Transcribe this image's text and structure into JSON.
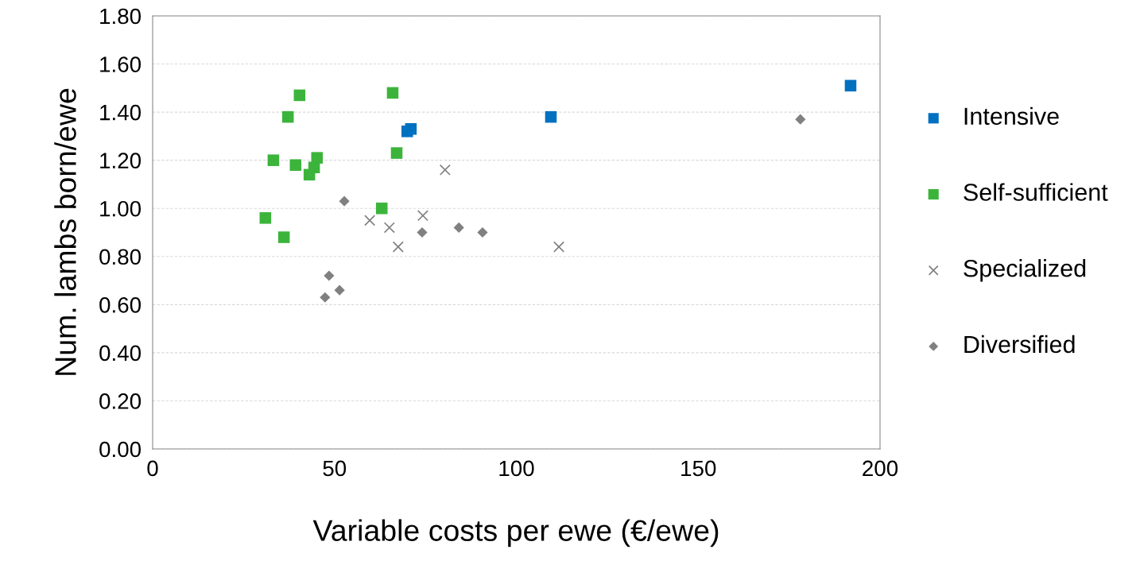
{
  "chart_data": {
    "type": "scatter",
    "xlabel": "Variable costs per ewe (€/ewe)",
    "ylabel": "Num. lambs born/ewe",
    "xlim": [
      0,
      200
    ],
    "xticks": [
      0,
      50,
      100,
      150,
      200
    ],
    "ylim": [
      0,
      1.8
    ],
    "yticks": [
      {
        "value": 0,
        "label": "0.00"
      },
      {
        "value": 0.2,
        "label": "0.20"
      },
      {
        "value": 0.4,
        "label": "0.40"
      },
      {
        "value": 0.6,
        "label": "0.60"
      },
      {
        "value": 0.8,
        "label": "0.80"
      },
      {
        "value": 1.0,
        "label": "1.00"
      },
      {
        "value": 1.2,
        "label": "1.20"
      },
      {
        "value": 1.4,
        "label": "1.40"
      },
      {
        "value": 1.6,
        "label": "1.60"
      },
      {
        "value": 1.8,
        "label": "1.80"
      }
    ],
    "grid": "y",
    "legend": "right",
    "series": [
      {
        "name": "Intensive",
        "color": "#0070c0",
        "marker": "square",
        "x": [
          70.0,
          71.0,
          109.5,
          191.9
        ],
        "values": [
          1.32,
          1.33,
          1.38,
          1.51
        ]
      },
      {
        "name": "Self-sufficient",
        "color": "#3cb43c",
        "marker": "square",
        "x": [
          31.0,
          33.2,
          36.1,
          37.2,
          39.3,
          40.4,
          43.1,
          44.4,
          45.2,
          63.0,
          66.0,
          67.1
        ],
        "values": [
          0.96,
          1.2,
          0.88,
          1.38,
          1.18,
          1.47,
          1.14,
          1.17,
          1.21,
          1.0,
          1.48,
          1.23
        ]
      },
      {
        "name": "Specialized",
        "color": "#808080",
        "marker": "cross",
        "x": [
          59.7,
          65.1,
          67.5,
          74.3,
          80.4,
          111.7
        ],
        "values": [
          0.95,
          0.92,
          0.84,
          0.97,
          1.16,
          0.84
        ]
      },
      {
        "name": "Diversified",
        "color": "#808080",
        "marker": "diamond",
        "x": [
          47.4,
          48.5,
          51.4,
          52.7,
          74.1,
          84.2,
          90.7,
          178.1
        ],
        "values": [
          0.63,
          0.72,
          0.66,
          1.03,
          0.9,
          0.92,
          0.9,
          1.37
        ]
      }
    ]
  }
}
